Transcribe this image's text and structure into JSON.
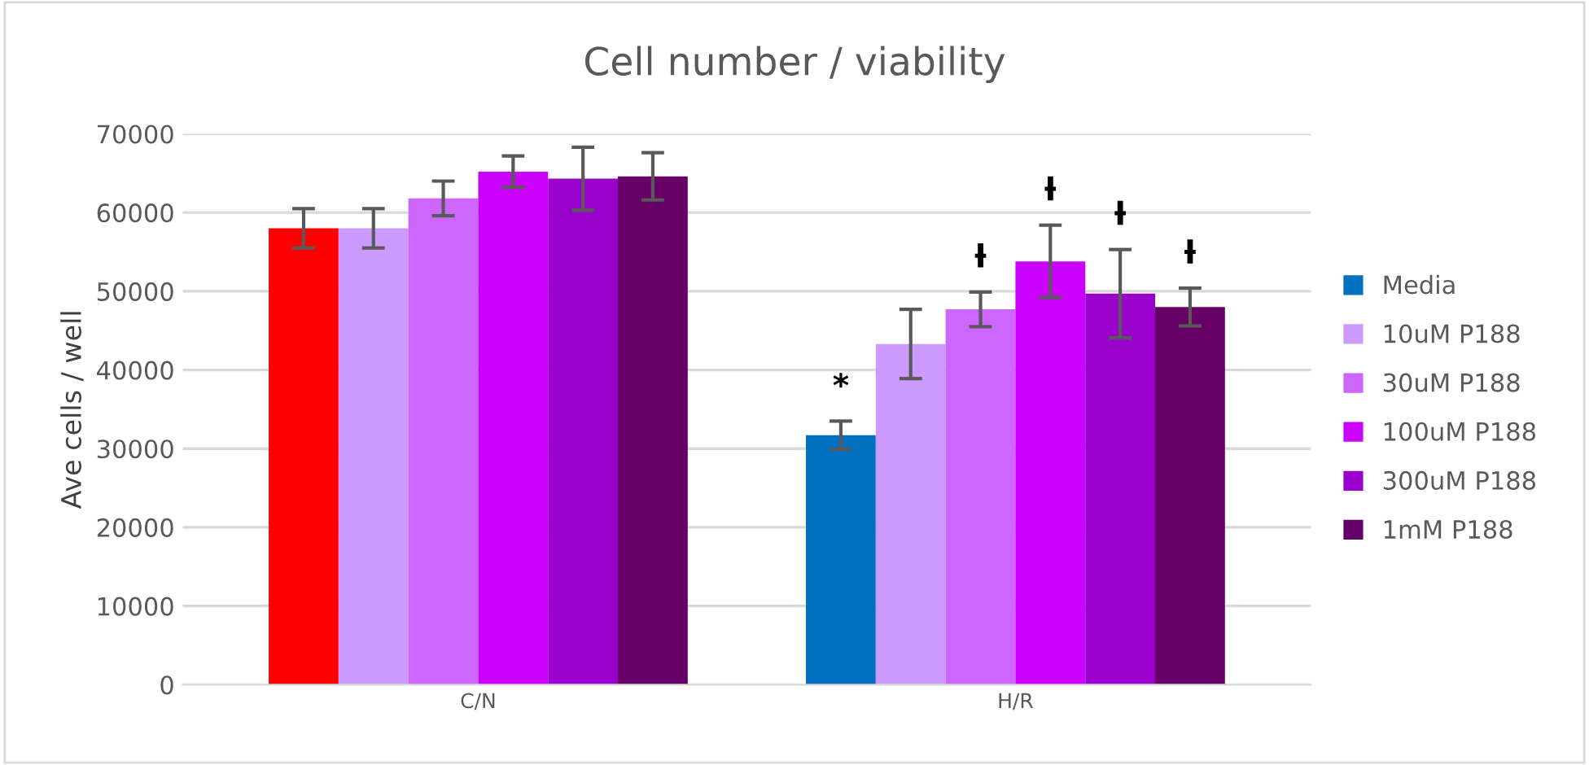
{
  "chart_data": {
    "type": "bar",
    "title": "Cell number / viability",
    "ylabel": "Ave cells / well",
    "categories": [
      "C/N",
      "H/R"
    ],
    "series": [
      {
        "name": "Media",
        "color": "#0070c0",
        "colors": [
          "#ff0000",
          "#0070c0"
        ],
        "values": [
          58000,
          31700
        ],
        "errors": [
          2500,
          1800
        ],
        "value_labels": [
          null,
          "*"
        ]
      },
      {
        "name": "10uM P188",
        "color": "#cc99ff",
        "values": [
          58000,
          43300
        ],
        "errors": [
          2500,
          4400
        ]
      },
      {
        "name": "30uM P188",
        "color": "#cc66ff",
        "values": [
          61800,
          47700
        ],
        "errors": [
          2200,
          2200
        ],
        "value_labels": [
          null,
          "ƚ"
        ]
      },
      {
        "name": "100uM P188",
        "color": "#cc00ff",
        "values": [
          65200,
          53800
        ],
        "errors": [
          2000,
          4600
        ],
        "value_labels": [
          null,
          "ƚ"
        ]
      },
      {
        "name": "300uM P188",
        "color": "#9900cc",
        "values": [
          64300,
          49700
        ],
        "errors": [
          4000,
          5600
        ],
        "value_labels": [
          null,
          "ƚ"
        ]
      },
      {
        "name": "1mM P188",
        "color": "#660066",
        "values": [
          64600,
          48000
        ],
        "errors": [
          3000,
          2400
        ],
        "value_labels": [
          null,
          "ƚ"
        ]
      }
    ],
    "ylim": [
      0,
      70000
    ],
    "yticks": [
      0,
      10000,
      20000,
      30000,
      40000,
      50000,
      60000,
      70000
    ],
    "grid": "y",
    "legend": "right"
  }
}
